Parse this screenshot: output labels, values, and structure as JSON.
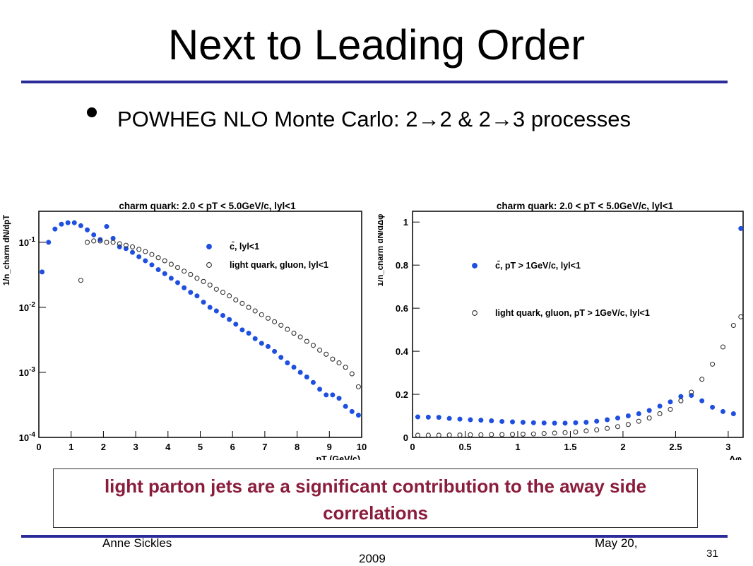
{
  "slide": {
    "title": "Next to Leading Order",
    "bullet": "POWHEG NLO Monte Carlo: 2→2 & 2→3 processes",
    "callout": "light parton jets are a significant contribution to the away side correlations",
    "footer": {
      "author": "Anne Sickles",
      "date_line1": "May 20,",
      "date_line2": "2009",
      "page": "31"
    }
  },
  "colors": {
    "rule": "#2b2b9a",
    "callout_text": "#8a1c3c",
    "charm_marker": "#1f4fe0",
    "light_marker": "#333333"
  },
  "chart_data": [
    {
      "type": "scatter",
      "title": "charm quark: 2.0 < pT < 5.0GeV/c, lyl<1",
      "xlabel": "pT (GeV/c)",
      "ylabel": "1/n_charm dN/dpT",
      "yscale": "log",
      "xlim": [
        0,
        10
      ],
      "ylim": [
        0.0001,
        0.3
      ],
      "xticks": [
        0,
        1,
        2,
        3,
        4,
        5,
        6,
        7,
        8,
        9,
        10
      ],
      "yticks": [
        0.0001,
        0.001,
        0.01,
        0.1
      ],
      "ytick_labels": [
        "10-4",
        "10-3",
        "10-2",
        "10-1"
      ],
      "grid": false,
      "legend_position": "upper-right",
      "series": [
        {
          "name": "c̄, lyl<1",
          "marker": "filled-circle",
          "x": [
            0.1,
            0.3,
            0.5,
            0.7,
            0.9,
            1.1,
            1.3,
            1.5,
            1.7,
            1.9,
            2.1,
            2.3,
            2.5,
            2.7,
            2.9,
            3.1,
            3.3,
            3.5,
            3.7,
            3.9,
            4.1,
            4.3,
            4.5,
            4.7,
            4.9,
            5.1,
            5.3,
            5.5,
            5.7,
            5.9,
            6.1,
            6.3,
            6.5,
            6.7,
            6.9,
            7.1,
            7.3,
            7.5,
            7.7,
            7.9,
            8.1,
            8.3,
            8.5,
            8.7,
            8.9,
            9.1,
            9.3,
            9.5,
            9.7,
            9.9
          ],
          "y": [
            0.035,
            0.1,
            0.16,
            0.19,
            0.2,
            0.2,
            0.18,
            0.155,
            0.13,
            0.11,
            0.175,
            0.115,
            0.085,
            0.08,
            0.07,
            0.06,
            0.052,
            0.045,
            0.038,
            0.033,
            0.028,
            0.024,
            0.02,
            0.017,
            0.015,
            0.012,
            0.01,
            0.0088,
            0.0075,
            0.0065,
            0.0055,
            0.0045,
            0.004,
            0.0033,
            0.0028,
            0.0025,
            0.0021,
            0.0017,
            0.0014,
            0.0012,
            0.001,
            0.00085,
            0.0007,
            0.00055,
            0.00045,
            0.00045,
            0.0004,
            0.0003,
            0.00025,
            0.00022
          ]
        },
        {
          "name": "light quark, gluon, lyl<1",
          "marker": "open-circle",
          "x": [
            1.3,
            1.5,
            1.7,
            1.9,
            2.1,
            2.3,
            2.5,
            2.7,
            2.9,
            3.1,
            3.3,
            3.5,
            3.7,
            3.9,
            4.1,
            4.3,
            4.5,
            4.7,
            4.9,
            5.1,
            5.3,
            5.5,
            5.7,
            5.9,
            6.1,
            6.3,
            6.5,
            6.7,
            6.9,
            7.1,
            7.3,
            7.5,
            7.7,
            7.9,
            8.1,
            8.3,
            8.5,
            8.7,
            8.9,
            9.1,
            9.3,
            9.5,
            9.7,
            9.9
          ],
          "y": [
            0.026,
            0.1,
            0.105,
            0.105,
            0.1,
            0.1,
            0.095,
            0.09,
            0.085,
            0.078,
            0.072,
            0.065,
            0.058,
            0.052,
            0.046,
            0.041,
            0.036,
            0.032,
            0.028,
            0.025,
            0.022,
            0.019,
            0.017,
            0.015,
            0.013,
            0.0115,
            0.01,
            0.0088,
            0.0077,
            0.0068,
            0.006,
            0.0053,
            0.0046,
            0.004,
            0.0035,
            0.003,
            0.0026,
            0.0022,
            0.0019,
            0.0016,
            0.0014,
            0.0012,
            0.00095,
            0.0006
          ]
        }
      ]
    },
    {
      "type": "scatter",
      "title": "charm quark: 2.0 < pT < 5.0GeV/c, lyl<1",
      "xlabel": "Δφ",
      "ylabel": "1/n_charm dN/dΔφ",
      "xlim": [
        0,
        3.14159
      ],
      "ylim": [
        0,
        1.05
      ],
      "xticks": [
        0,
        0.5,
        1,
        1.5,
        2,
        2.5,
        3
      ],
      "yticks": [
        0,
        0.2,
        0.4,
        0.6,
        0.8,
        1
      ],
      "grid": false,
      "legend_position": "middle",
      "series": [
        {
          "name": "c̄, pT > 1GeV/c, lyl<1",
          "marker": "filled-circle",
          "x": [
            0.05,
            0.15,
            0.25,
            0.35,
            0.45,
            0.55,
            0.65,
            0.75,
            0.85,
            0.95,
            1.05,
            1.15,
            1.25,
            1.35,
            1.45,
            1.55,
            1.65,
            1.75,
            1.85,
            1.95,
            2.05,
            2.15,
            2.25,
            2.35,
            2.45,
            2.55,
            2.65,
            2.75,
            2.85,
            2.95,
            3.05,
            3.12
          ],
          "y": [
            0.095,
            0.094,
            0.093,
            0.088,
            0.085,
            0.082,
            0.08,
            0.077,
            0.074,
            0.072,
            0.07,
            0.068,
            0.067,
            0.066,
            0.066,
            0.068,
            0.07,
            0.075,
            0.082,
            0.09,
            0.1,
            0.11,
            0.125,
            0.145,
            0.165,
            0.19,
            0.195,
            0.17,
            0.14,
            0.12,
            0.11,
            0.97
          ]
        },
        {
          "name": "light quark, gluon, pT > 1GeV/c, lyl<1",
          "marker": "open-circle",
          "x": [
            0.05,
            0.15,
            0.25,
            0.35,
            0.45,
            0.55,
            0.65,
            0.75,
            0.85,
            0.95,
            1.05,
            1.15,
            1.25,
            1.35,
            1.45,
            1.55,
            1.65,
            1.75,
            1.85,
            1.95,
            2.05,
            2.15,
            2.25,
            2.35,
            2.45,
            2.55,
            2.65,
            2.75,
            2.85,
            2.95,
            3.05,
            3.12
          ],
          "y": [
            0.01,
            0.01,
            0.01,
            0.011,
            0.011,
            0.012,
            0.012,
            0.013,
            0.013,
            0.014,
            0.015,
            0.016,
            0.018,
            0.02,
            0.022,
            0.025,
            0.03,
            0.035,
            0.042,
            0.05,
            0.06,
            0.075,
            0.09,
            0.11,
            0.13,
            0.17,
            0.21,
            0.27,
            0.34,
            0.42,
            0.52,
            0.56
          ]
        }
      ]
    }
  ]
}
